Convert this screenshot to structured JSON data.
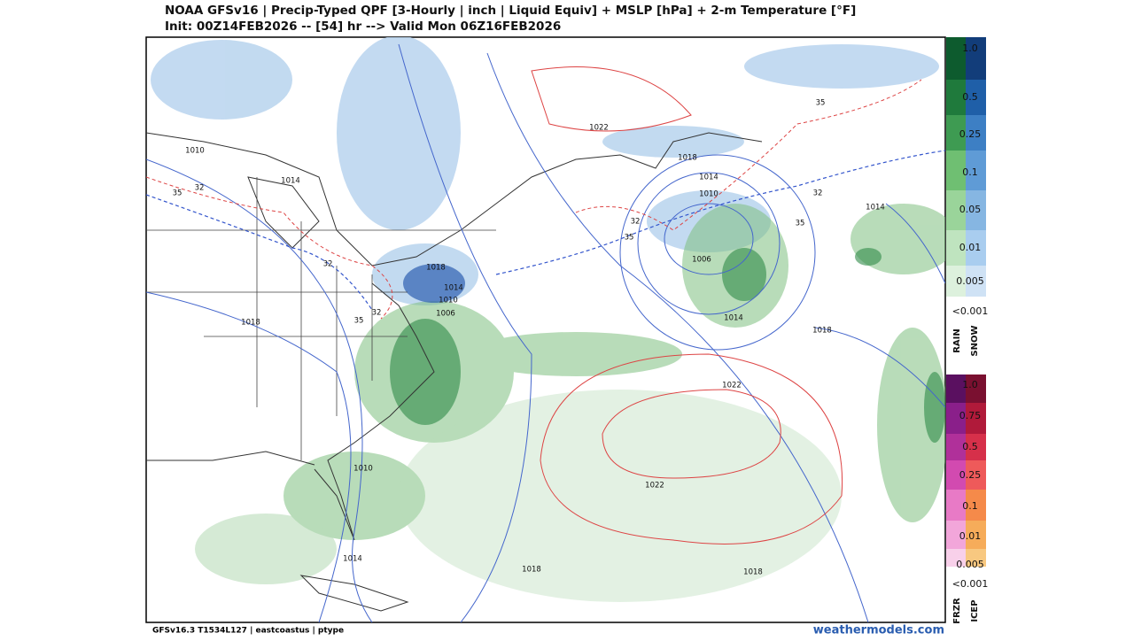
{
  "header": {
    "line1": "NOAA GFSv16 |  Precip-Typed QPF [3-Hourly | inch | Liquid Equiv] + MSLP [hPa] + 2-m Temperature [°F]",
    "line2": "Init: 00Z14FEB2026 -- [54] hr --> Valid Mon 06Z16FEB2026"
  },
  "footer": {
    "left": "GFSv16.3 T1534L127 | eastcoastus | ptype",
    "right": "weathermodels.com"
  },
  "legend_rain_snow": {
    "labels": [
      "1.0",
      "0.5",
      "0.25",
      "0.1",
      "0.05",
      "0.01",
      "0.005"
    ],
    "below": "<0.001",
    "types": [
      "RAIN",
      "SNOW"
    ]
  },
  "legend_frzr_icep": {
    "labels": [
      "1.0",
      "0.75",
      "0.5",
      "0.25",
      "0.1",
      "0.01",
      "0.005"
    ],
    "below": "<0.001",
    "types": [
      "FRZR",
      "ICEP"
    ]
  },
  "contour_labels": [
    "1010",
    "1014",
    "35",
    "32",
    "32",
    "1018",
    "1014",
    "1010",
    "1006",
    "32",
    "35",
    "1018",
    "1022",
    "35",
    "1018",
    "1014",
    "1010",
    "32",
    "35",
    "32",
    "35",
    "1014",
    "1006",
    "1014",
    "1018",
    "1022",
    "1022",
    "1010",
    "1014",
    "1018",
    "1018"
  ]
}
